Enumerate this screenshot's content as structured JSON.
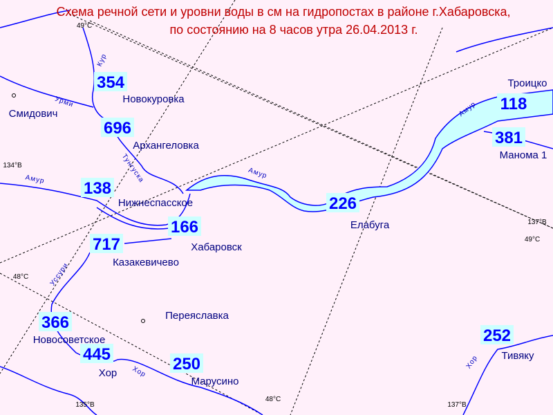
{
  "title": [
    "Схема речной сети и уровни воды в см на гидропостах в районе г.Хабаровска,",
    "по состоянию на 8 часов утра 26.04.2013 г."
  ],
  "stations": [
    {
      "level": "354",
      "name": "Новокуровка"
    },
    {
      "level": "696",
      "name": "Архангеловка"
    },
    {
      "level": "138",
      "name": "Нижнеспасское"
    },
    {
      "level": "166",
      "name": "Хабаровск"
    },
    {
      "level": "717",
      "name": "Казакевичево"
    },
    {
      "level": "226",
      "name": "Елабуга"
    },
    {
      "level": "118",
      "name": "Троицко"
    },
    {
      "level": "381",
      "name": "Манома 1"
    },
    {
      "level": "366",
      "name": "Новосоветское"
    },
    {
      "level": "445",
      "name": "Хор"
    },
    {
      "level": "250",
      "name": "Марусино"
    },
    {
      "level": "252",
      "name": "Тивяку"
    }
  ],
  "towns": [
    "Смидович",
    "Переяславка"
  ],
  "rivers": [
    "Кур",
    "Урми",
    "Тунгуска",
    "Амур",
    "Амур",
    "Амур",
    "Уссури",
    "Хор",
    "Хор"
  ],
  "graticule": [
    "49°С",
    "134°В",
    "137°В",
    "49°С",
    "48°С",
    "135°В",
    "48°С",
    "137°В"
  ]
}
